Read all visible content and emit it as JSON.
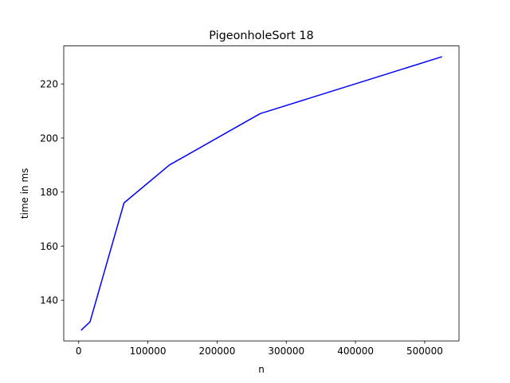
{
  "chart_data": {
    "type": "line",
    "title": "PigeonholeSort 18",
    "xlabel": "n",
    "ylabel": "time in ms",
    "xlim": [
      -21585,
      549581
    ],
    "ylim": [
      124.95,
      234.05
    ],
    "x_ticks": [
      0,
      100000,
      200000,
      300000,
      400000,
      500000
    ],
    "x_tick_labels": [
      "0",
      "100000",
      "200000",
      "300000",
      "400000",
      "500000"
    ],
    "y_ticks": [
      140,
      160,
      180,
      200,
      220
    ],
    "y_tick_labels": [
      "140",
      "160",
      "180",
      "200",
      "220"
    ],
    "grid": false,
    "series": [
      {
        "color": "#0000ff",
        "x": [
          4096,
          16384,
          65536,
          131072,
          262144,
          524288
        ],
        "y": [
          129,
          132,
          176,
          190,
          209,
          230
        ]
      }
    ]
  }
}
